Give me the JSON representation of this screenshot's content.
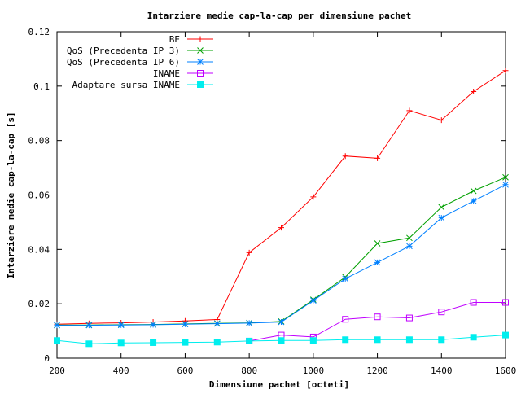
{
  "chart_data": {
    "type": "line",
    "title": "Intarziere medie cap-la-cap per dimensiune pachet",
    "xlabel": "Dimensiune pachet [octeti]",
    "ylabel": "Intarziere medie cap-la-cap [s]",
    "xlim": [
      200,
      1600
    ],
    "ylim": [
      0,
      0.12
    ],
    "x_ticks": [
      200,
      400,
      600,
      800,
      1000,
      1200,
      1400,
      1600
    ],
    "y_ticks": [
      0,
      0.02,
      0.04,
      0.06,
      0.08,
      0.1,
      0.12
    ],
    "x_tick_labels": [
      "200",
      "400",
      "600",
      "800",
      "1000",
      "1200",
      "1400",
      "1600"
    ],
    "y_tick_labels": [
      "0",
      "0.02",
      "0.04",
      "0.06",
      "0.08",
      "0.1",
      "0.12"
    ],
    "grid": false,
    "legend_position": "top-left",
    "x": [
      200,
      300,
      400,
      500,
      600,
      700,
      800,
      900,
      1000,
      1100,
      1200,
      1300,
      1400,
      1500,
      1600
    ],
    "series": [
      {
        "name": "BE",
        "color": "#ff0000",
        "marker": "plus",
        "values": [
          0.0125,
          0.0128,
          0.013,
          0.0133,
          0.0137,
          0.0142,
          0.0388,
          0.048,
          0.0593,
          0.0743,
          0.0735,
          0.091,
          0.0875,
          0.098,
          0.1057
        ]
      },
      {
        "name": "QoS (Precedenta IP 3)",
        "color": "#00a000",
        "marker": "cross",
        "values": [
          0.0122,
          0.0122,
          0.0123,
          0.0124,
          0.0126,
          0.0128,
          0.013,
          0.0135,
          0.0215,
          0.0298,
          0.0422,
          0.0442,
          0.0555,
          0.0615,
          0.0665
        ]
      },
      {
        "name": "QoS (Precedenta IP 6)",
        "color": "#0080ff",
        "marker": "star",
        "values": [
          0.0121,
          0.0121,
          0.0122,
          0.0123,
          0.0125,
          0.0127,
          0.0129,
          0.0133,
          0.0212,
          0.0292,
          0.0352,
          0.0412,
          0.0516,
          0.0578,
          0.0638
        ]
      },
      {
        "name": "INAME",
        "color": "#c000ff",
        "marker": "open-square",
        "values": [
          null,
          null,
          null,
          null,
          null,
          null,
          0.0063,
          0.0085,
          0.0078,
          0.0143,
          0.0152,
          0.0148,
          0.017,
          0.0205,
          0.0205
        ]
      },
      {
        "name": "Adaptare sursa INAME",
        "color": "#00eeee",
        "marker": "filled-square",
        "values": [
          0.0065,
          0.0053,
          0.0056,
          0.0057,
          0.0058,
          0.0059,
          0.0063,
          0.0065,
          0.0065,
          0.0068,
          0.0068,
          0.0068,
          0.0068,
          0.0077,
          0.0085
        ]
      }
    ]
  }
}
